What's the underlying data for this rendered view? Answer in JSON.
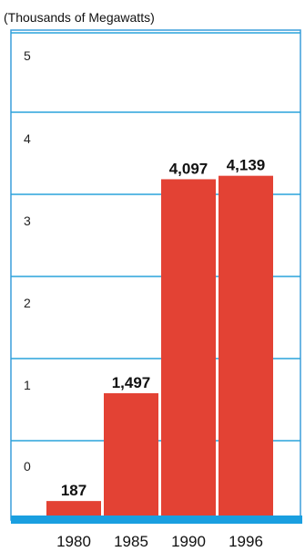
{
  "chart_data": {
    "type": "bar",
    "subtitle": "(Thousands of Megawatts)",
    "categories": [
      "1980",
      "1985",
      "1990",
      "1996"
    ],
    "values": [
      187,
      1497,
      4097,
      4139
    ],
    "data_labels": [
      "187",
      "1,497",
      "4,097",
      "4,139"
    ],
    "y_tick_labels": [
      "0",
      "1",
      "2",
      "3",
      "4",
      "5"
    ],
    "grid": true,
    "colors": {
      "bar": "#e34234",
      "grid": "#2aa3dc",
      "baseline": "#1a9fe0",
      "frame": "#3b9ddb"
    }
  }
}
